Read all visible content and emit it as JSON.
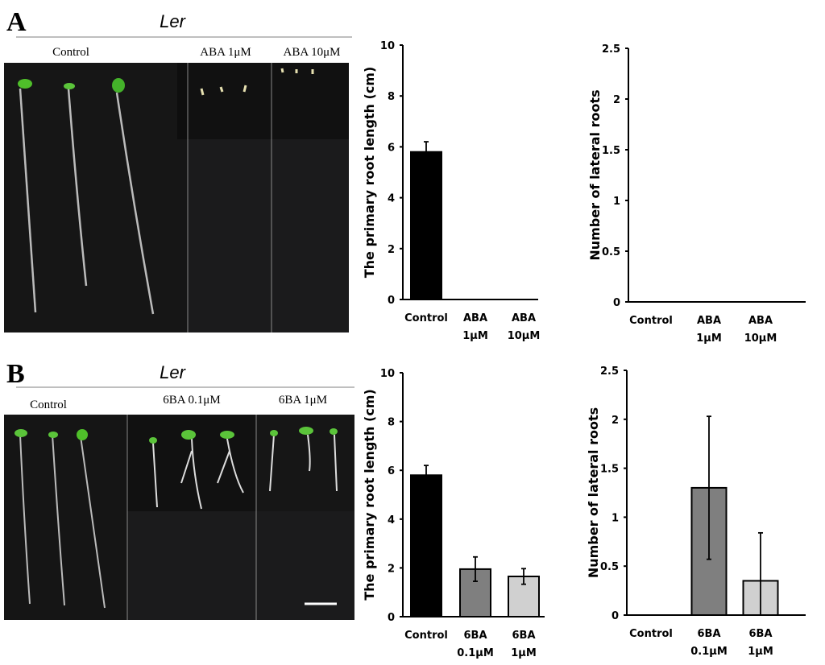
{
  "panels": [
    {
      "letter": "A",
      "genotype": "Ler",
      "photo_labels": [
        "Control",
        "ABA 1μM",
        "ABA 10μM"
      ]
    },
    {
      "letter": "B",
      "genotype": "Ler",
      "photo_labels": [
        "Control",
        "6BA 0.1μM",
        "6BA 1μM"
      ]
    }
  ],
  "colors": {
    "control": "#000000",
    "low": "#7f7f7f",
    "high": "#d0d0d0",
    "photo_bg": "#141414"
  },
  "chart_data": [
    {
      "id": "A-primary",
      "type": "bar",
      "ylabel": "The primary root length (cm)",
      "ylim": [
        0,
        10
      ],
      "yticks": [
        0,
        2,
        4,
        6,
        8,
        10
      ],
      "categories": [
        [
          "Control"
        ],
        [
          "ABA",
          "1μM"
        ],
        [
          "ABA",
          "10μM"
        ]
      ],
      "values": [
        5.8,
        0,
        0
      ],
      "errors": [
        0.4,
        0,
        0
      ]
    },
    {
      "id": "A-lateral",
      "type": "bar",
      "ylabel": "Number of lateral roots",
      "ylim": [
        0,
        2.5
      ],
      "yticks": [
        0,
        0.5,
        1,
        1.5,
        2,
        2.5
      ],
      "categories": [
        [
          "Control"
        ],
        [
          "ABA",
          "1μM"
        ],
        [
          "ABA",
          "10μM"
        ]
      ],
      "values": [
        0,
        0,
        0
      ],
      "errors": [
        0,
        0,
        0
      ]
    },
    {
      "id": "B-primary",
      "type": "bar",
      "ylabel": "The primary root length (cm)",
      "ylim": [
        0,
        10
      ],
      "yticks": [
        0,
        2,
        4,
        6,
        8,
        10
      ],
      "categories": [
        [
          "Control"
        ],
        [
          "6BA",
          "0.1μM"
        ],
        [
          "6BA",
          "1μM"
        ]
      ],
      "values": [
        5.8,
        1.95,
        1.65
      ],
      "errors": [
        0.4,
        0.5,
        0.32
      ]
    },
    {
      "id": "B-lateral",
      "type": "bar",
      "ylabel": "Number of lateral roots",
      "ylim": [
        0,
        2.5
      ],
      "yticks": [
        0,
        0.5,
        1,
        1.5,
        2,
        2.5
      ],
      "categories": [
        [
          "Control"
        ],
        [
          "6BA",
          "0.1μM"
        ],
        [
          "6BA",
          "1μM"
        ]
      ],
      "values": [
        0,
        1.3,
        0.35
      ],
      "errors": [
        0,
        0.73,
        0.49
      ]
    }
  ]
}
